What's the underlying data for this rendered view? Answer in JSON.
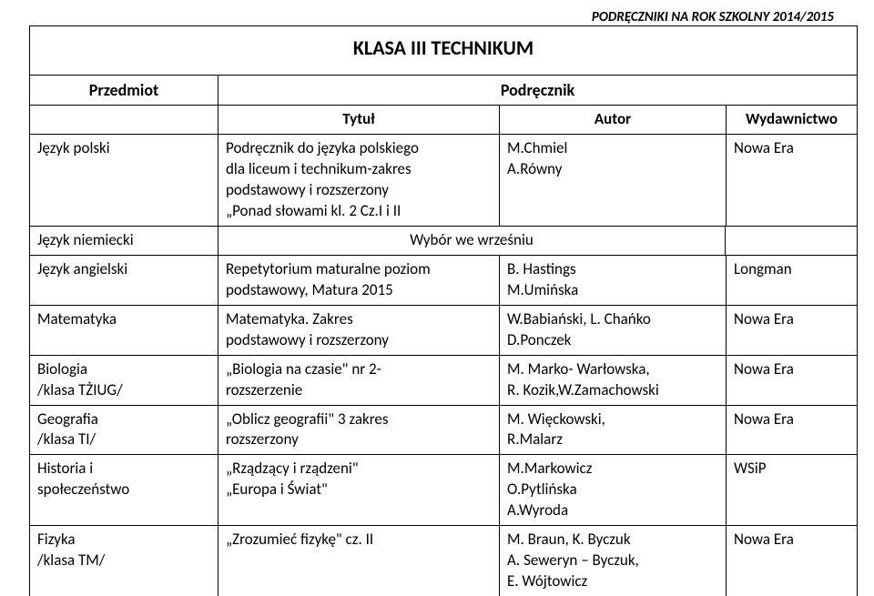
{
  "header": "PODRĘCZNIKI NA ROK SZKOLNY 2014/2015",
  "title": "KLASA III TECHNIKUM",
  "headRow": {
    "przedmiot": "Przedmiot",
    "podrecznik": "Podręcznik"
  },
  "subhead": {
    "tytul": "Tytuł",
    "autor": "Autor",
    "wydawnictwo": "Wydawnictwo"
  },
  "rows": {
    "r1": {
      "subject": "Język polski",
      "title1": "Podręcznik do języka polskiego",
      "title2": "dla liceum i technikum-zakres",
      "title3": "podstawowy i rozszerzony",
      "title4": "„Ponad słowami kl. 2 Cz.I i II",
      "author1": "M.Chmiel",
      "author2": "A.Równy",
      "publisher": "Nowa Era"
    },
    "r2": {
      "subject": "Język niemiecki",
      "note": "Wybór we wrześniu"
    },
    "r3": {
      "subject": "Język angielski",
      "title1": "Repetytorium maturalne poziom",
      "title2": "podstawowy, Matura 2015",
      "author1": "B. Hastings",
      "author2": "M.Umińska",
      "publisher": "Longman"
    },
    "r4": {
      "subject": "Matematyka",
      "title1": "Matematyka. Zakres",
      "title2": "podstawowy i rozszerzony",
      "author1": "W.Babiański, L. Chańko",
      "author2": "D.Ponczek",
      "publisher": "Nowa Era"
    },
    "r5": {
      "subject1": "Biologia",
      "subject2": "/klasa TŻIUG/",
      "title1": "„Biologia na czasie\" nr 2-",
      "title2": "rozszerzenie",
      "author1": "M. Marko- Warłowska,",
      "author2": "R. Kozik,W.Zamachowski",
      "publisher": "Nowa Era"
    },
    "r6": {
      "subject1": "Geografia",
      "subject2": "/klasa TI/",
      "title1": "„Oblicz geografii\" 3 zakres",
      "title2": "rozszerzony",
      "author1": "M. Więckowski,",
      "author2": " R.Malarz",
      "publisher": "Nowa Era"
    },
    "r7": {
      "subject1": "Historia  i",
      "subject2": "społeczeństwo",
      "title1": "„Rządzący i rządzeni\"",
      "title2": "„Europa i Świat\"",
      "author1": "M.Markowicz",
      "author2": "O.Pytlińska",
      "author3": "A.Wyroda",
      "publisher": "WSiP"
    },
    "r8": {
      "subject1": "Fizyka",
      "subject2": "/klasa TM/",
      "title1": "„Zrozumieć fizykę\" cz. II",
      "author1": "M. Braun, K. Byczuk",
      "author2": "A. Seweryn – Byczuk,",
      "author3": "E. Wójtowicz",
      "publisher": "Nowa Era"
    }
  }
}
